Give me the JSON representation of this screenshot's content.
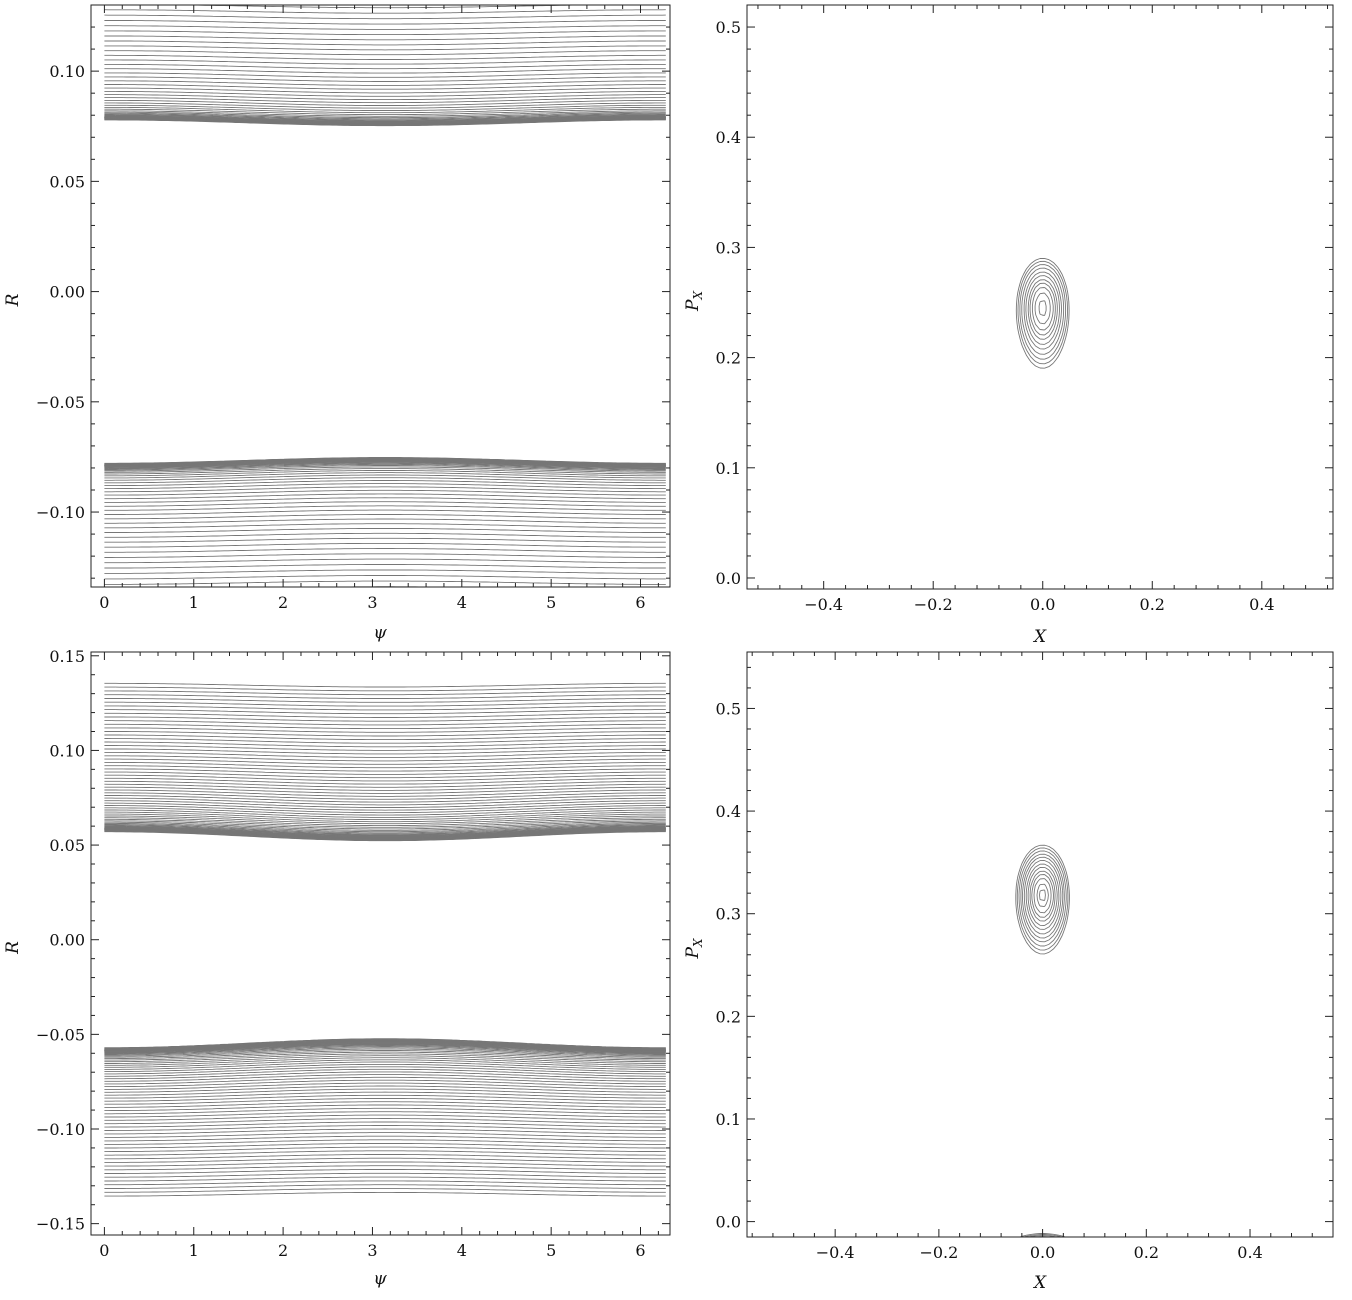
{
  "chart_data": [
    {
      "type": "contour",
      "panel": "top-left",
      "xlabel": "ψ",
      "ylabel": "R",
      "xlim": [
        -0.15,
        6.33
      ],
      "ylim": [
        -0.134,
        0.13
      ],
      "xticks": [
        0,
        1,
        2,
        3,
        4,
        5,
        6
      ],
      "yticks": [
        -0.1,
        -0.05,
        0.0,
        0.05,
        0.1
      ],
      "xtick_labels": [
        "0",
        "1",
        "2",
        "3",
        "4",
        "5",
        "6"
      ],
      "ytick_labels": [
        "−0.10",
        "−0.05",
        "0.00",
        "0.05",
        "0.10"
      ],
      "levels": [
        -1.6,
        -1.3,
        -1.0,
        -0.8,
        -0.6,
        -0.4,
        -0.2,
        -0.05,
        0.05,
        0.15,
        0.3,
        0.5,
        0.7,
        1.0,
        1.4,
        1.9,
        2.5,
        3.2,
        4.0,
        5.0,
        6.2,
        7.6,
        9.2,
        11.0,
        13.0,
        15.2,
        17.6,
        20.2,
        23.0,
        26.0,
        29.2,
        32.6,
        36.2,
        40.0,
        44.0,
        48.2,
        52.6,
        57.2,
        62.0,
        67.0,
        72.2,
        77.6,
        83.2,
        89.0,
        95.0,
        101.2,
        107.6,
        114.2,
        121.0,
        128.0,
        135.2,
        142.6,
        150.2,
        158.0,
        166.0,
        174.2,
        182.6,
        191.2,
        200.0,
        209.0,
        218.2,
        227.6,
        237.2,
        247.0,
        257.0,
        267.2,
        277.6,
        288.2,
        299.0,
        310.0
      ],
      "model": {
        "r0": -0.075,
        "amp": 0.02
      }
    },
    {
      "type": "contour",
      "panel": "top-right",
      "xlabel": "X",
      "ylabel": "P_X",
      "xlim": [
        -0.54,
        0.53
      ],
      "ylim": [
        -0.01,
        0.52
      ],
      "xticks": [
        -0.4,
        -0.2,
        0.0,
        0.2,
        0.4
      ],
      "yticks": [
        0.0,
        0.1,
        0.2,
        0.3,
        0.4,
        0.5
      ],
      "xtick_labels": [
        "−0.4",
        "−0.2",
        "0.0",
        "0.2",
        "0.4"
      ],
      "ytick_labels": [
        "0.0",
        "0.1",
        "0.2",
        "0.3",
        "0.4",
        "0.5"
      ],
      "levels": [
        0.004,
        0.0035,
        0.003,
        0.0025,
        0.002,
        0.0016,
        0.0012,
        0.0009,
        0.0006,
        0.0003,
        5e-05,
        -0.001,
        -0.002,
        -0.003,
        -0.004,
        -0.005,
        -0.006
      ],
      "model": {
        "p0": 0.245,
        "p1": 0.5
      }
    },
    {
      "type": "contour",
      "panel": "bottom-left",
      "xlabel": "ψ",
      "ylabel": "R",
      "xlim": [
        -0.15,
        6.33
      ],
      "ylim": [
        -0.156,
        0.152
      ],
      "xticks": [
        0,
        1,
        2,
        3,
        4,
        5,
        6
      ],
      "yticks": [
        -0.15,
        -0.1,
        -0.05,
        0.0,
        0.05,
        0.1,
        0.15
      ],
      "xtick_labels": [
        "0",
        "1",
        "2",
        "3",
        "4",
        "5",
        "6"
      ],
      "ytick_labels": [
        "−0.15",
        "−0.10",
        "−0.05",
        "0.00",
        "0.05",
        "0.10",
        "0.15"
      ],
      "levels": [
        -1.8,
        -1.5,
        -1.2,
        -0.95,
        -0.75,
        -0.55,
        -0.38,
        -0.22,
        -0.1,
        0.0,
        0.12,
        0.3,
        0.55,
        0.85,
        1.2,
        1.6,
        2.1,
        2.7,
        3.4,
        4.2,
        5.1,
        6.1,
        7.2,
        8.4,
        9.7,
        11.1,
        12.6,
        14.2,
        15.9,
        17.7,
        19.6,
        21.6,
        23.7,
        25.9,
        28.2,
        30.6,
        33.1,
        35.7,
        38.4,
        41.2,
        44.1,
        47.1,
        50.2,
        53.4,
        56.7,
        60.1,
        63.6,
        67.2,
        70.9,
        74.7,
        78.6,
        82.6,
        86.7,
        90.9,
        95.2,
        99.6,
        104.1,
        108.7,
        113.4,
        118.2,
        123.1,
        128.1,
        133.2,
        138.4,
        143.7,
        149.1
      ],
      "model": {
        "r0": -0.05,
        "amp": 0.026
      }
    },
    {
      "type": "contour",
      "panel": "bottom-right",
      "xlabel": "X",
      "ylabel": "P_X",
      "xlim": [
        -0.57,
        0.56
      ],
      "ylim": [
        -0.015,
        0.555
      ],
      "xticks": [
        -0.4,
        -0.2,
        0.0,
        0.2,
        0.4
      ],
      "yticks": [
        0.0,
        0.1,
        0.2,
        0.3,
        0.4,
        0.5
      ],
      "xtick_labels": [
        "−0.4",
        "−0.2",
        "0.0",
        "0.2",
        "0.4"
      ],
      "ytick_labels": [
        "0.0",
        "0.1",
        "0.2",
        "0.3",
        "0.4",
        "0.5"
      ],
      "levels": [
        0.0052,
        0.0046,
        0.004,
        0.0034,
        0.0029,
        0.0024,
        0.0019,
        0.0015,
        0.0011,
        0.0008,
        0.0005,
        0.0002,
        2e-05,
        -0.0006,
        -0.0014,
        -0.0024,
        -0.0036,
        -0.005
      ],
      "model": {
        "p0": 0.318,
        "p1": 0.53
      }
    }
  ]
}
